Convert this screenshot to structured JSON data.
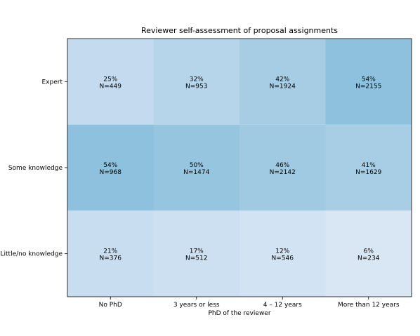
{
  "chart_data": {
    "type": "heatmap",
    "title": "Reviewer self-assessment of proposal assignments",
    "xlabel": "PhD of the reviewer",
    "ylabel": "",
    "x_categories": [
      "No PhD",
      "3 years or less",
      "4 – 12 years",
      "More than 12 years"
    ],
    "y_categories": [
      "Expert",
      "Some knowledge",
      "Little/no knowledge"
    ],
    "percent_labels": [
      [
        "25%",
        "32%",
        "42%",
        "54%"
      ],
      [
        "54%",
        "50%",
        "46%",
        "41%"
      ],
      [
        "21%",
        "17%",
        "12%",
        "6%"
      ]
    ],
    "n_labels": [
      [
        "N=449",
        "N=953",
        "N=1924",
        "N=2155"
      ],
      [
        "N=968",
        "N=1474",
        "N=2142",
        "N=1629"
      ],
      [
        "N=376",
        "N=512",
        "N=546",
        "N=234"
      ]
    ],
    "values": [
      [
        25,
        32,
        42,
        54
      ],
      [
        54,
        50,
        46,
        41
      ],
      [
        21,
        17,
        12,
        6
      ]
    ],
    "colormap": "Blues",
    "color_range": [
      0,
      100
    ],
    "grid": false
  }
}
